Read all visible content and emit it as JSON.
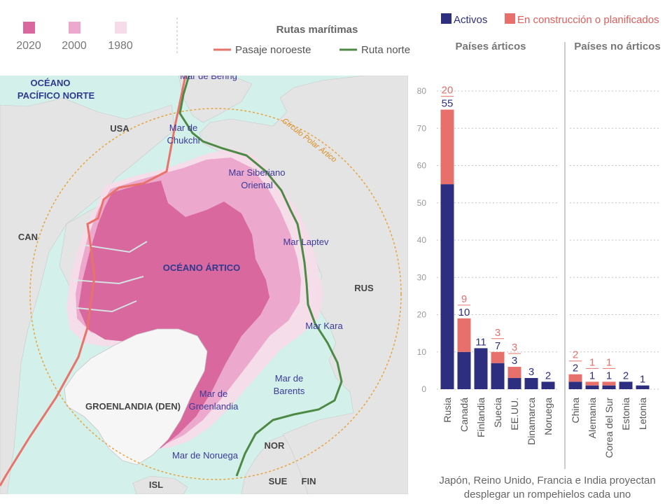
{
  "legend_extent": {
    "items": [
      {
        "label": "2020",
        "color": "#d9689f"
      },
      {
        "label": "2000",
        "color": "#eda9cd"
      },
      {
        "label": "1980",
        "color": "#f7dbe9"
      }
    ]
  },
  "legend_routes": {
    "title": "Rutas marítimas",
    "items": [
      {
        "label": "Pasaje noroeste",
        "color": "#e8736b"
      },
      {
        "label": "Ruta norte",
        "color": "#4c8a45"
      }
    ]
  },
  "map": {
    "labels": {
      "ocean_pacific_1": "OCÉANO",
      "ocean_pacific_2": "PACÍFICO NORTE",
      "usa": "USA",
      "can": "CAN",
      "rus": "RUS",
      "arctic_ocean": "OCÉANO ÁRTICO",
      "greenland": "GROENLANDIA (DEN)",
      "nor": "NOR",
      "sue": "SUE",
      "fin": "FIN",
      "isl": "ISL",
      "bering": "Mar de Bering",
      "chukchi_1": "Mar de",
      "chukchi_2": "Chukchi",
      "siberian_1": "Mar Siberiano",
      "siberian_2": "Oriental",
      "laptev": "Mar Laptev",
      "kara": "Mar Kara",
      "barents_1": "Mar de",
      "barents_2": "Barents",
      "greenland_sea_1": "Mar de",
      "greenland_sea_2": "Groenlandia",
      "norway_sea": "Mar de Noruega",
      "polar_circle": "Círculo Polar Ártico"
    },
    "colors": {
      "water": "#d4f0ea",
      "land": "#e4e4e4",
      "greenland": "#f6f6f6",
      "ice_2020": "#d9689f",
      "ice_2000": "#eda9cd",
      "ice_1980": "#f7dbe9",
      "polar_circle": "#e8a33a",
      "label_sea": "#3a3a9a",
      "label_country": "#444444"
    }
  },
  "chart_data": {
    "type": "bar",
    "stacked": true,
    "legend": [
      {
        "name": "Activos",
        "color": "#2e2e80"
      },
      {
        "name": "En construcción o planificados",
        "color": "#e8706c"
      }
    ],
    "ylim": [
      0,
      80
    ],
    "yticks": [
      0,
      10,
      20,
      30,
      40,
      50,
      60,
      70,
      80
    ],
    "groups": [
      {
        "title": "Países árticos",
        "categories": [
          "Rusia",
          "Canadá",
          "Finlandia",
          "Suecia",
          "EE.UU.",
          "Dinamarca",
          "Noruega"
        ],
        "series": [
          {
            "name": "Activos",
            "values": [
              55,
              10,
              11,
              7,
              3,
              3,
              2
            ]
          },
          {
            "name": "En construcción o planificados",
            "values": [
              20,
              9,
              0,
              3,
              3,
              0,
              0
            ]
          }
        ]
      },
      {
        "title": "Países no árticos",
        "categories": [
          "China",
          "Alemania",
          "Corea del Sur",
          "Estonia",
          "Letonia"
        ],
        "series": [
          {
            "name": "Activos",
            "values": [
              2,
              1,
              1,
              2,
              1
            ]
          },
          {
            "name": "En construcción o planificados",
            "values": [
              2,
              1,
              1,
              0,
              0
            ]
          }
        ]
      }
    ],
    "footnote_1": "Japón, Reino Unido, Francia e India proyectan",
    "footnote_2": "desplegar un rompehielos cada uno"
  }
}
